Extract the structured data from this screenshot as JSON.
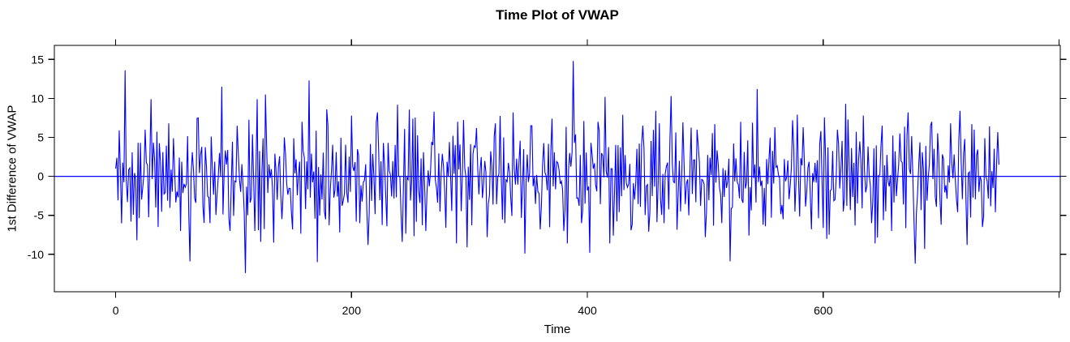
{
  "title": "Time Plot of VWAP",
  "axes": {
    "xlabel": "Time",
    "ylabel": "1st Difference of VWAP"
  },
  "colors": {
    "line": "#0000ff",
    "zero_line": "#0000ff",
    "axis": "#000000",
    "background": "#ffffff"
  },
  "chart_data": {
    "type": "line",
    "title": "Time Plot of VWAP",
    "xlabel": "Time",
    "ylabel": "1st Difference of VWAP",
    "grid": false,
    "legend": false,
    "xlim": [
      -52,
      801
    ],
    "ylim": [
      -14.8,
      16.8
    ],
    "x_ticks_labeled": [
      0,
      200,
      400,
      600
    ],
    "x_ticks_all": [
      0,
      200,
      400,
      600,
      800
    ],
    "y_ticks": [
      -10,
      -5,
      0,
      5,
      10,
      15
    ],
    "ticks_on_all_sides": true,
    "zero_line": {
      "y": 0,
      "color": "#0000ff"
    },
    "x_data_range": [
      0,
      749
    ],
    "series": [
      {
        "name": "1st difference of VWAP",
        "color": "#0000ff",
        "n": 750,
        "appearance": "high-frequency white-noise oscillation around 0, typical amplitude ±5 to ±8",
        "noise_sd": 3.3,
        "noise_clamp": 8.6,
        "ma_theta": 0.5,
        "seed": 11,
        "anchors": [
          [
            3,
            5.9
          ],
          [
            8,
            13.6
          ],
          [
            13,
            -5.8
          ],
          [
            18,
            -8.2
          ],
          [
            25,
            6.0
          ],
          [
            30,
            9.9
          ],
          [
            36,
            -6.5
          ],
          [
            45,
            6.8
          ],
          [
            55,
            -7.0
          ],
          [
            63,
            -10.9
          ],
          [
            70,
            7.5
          ],
          [
            80,
            -6.0
          ],
          [
            90,
            11.5
          ],
          [
            97,
            -7.0
          ],
          [
            103,
            6.5
          ],
          [
            110,
            -12.4
          ],
          [
            120,
            9.9
          ],
          [
            127,
            10.5
          ],
          [
            134,
            -8.5
          ],
          [
            143,
            5.0
          ],
          [
            150,
            -6.8
          ],
          [
            158,
            7.0
          ],
          [
            164,
            12.3
          ],
          [
            171,
            -11.0
          ],
          [
            180,
            6.5
          ],
          [
            190,
            -7.2
          ],
          [
            200,
            7.8
          ],
          [
            207,
            -6.0
          ],
          [
            214,
            -8.8
          ],
          [
            222,
            8.2
          ],
          [
            230,
            -6.4
          ],
          [
            239,
            9.2
          ],
          [
            243,
            -8.4
          ],
          [
            252,
            7.4
          ],
          [
            263,
            -7.0
          ],
          [
            270,
            8.3
          ],
          [
            280,
            -6.6
          ],
          [
            290,
            7.0
          ],
          [
            298,
            -9.1
          ],
          [
            306,
            6.2
          ],
          [
            315,
            -7.8
          ],
          [
            322,
            6.8
          ],
          [
            330,
            -6.0
          ],
          [
            337,
            8.2
          ],
          [
            347,
            -9.9
          ],
          [
            352,
            6.5
          ],
          [
            360,
            -6.8
          ],
          [
            370,
            7.4
          ],
          [
            380,
            -7.0
          ],
          [
            388,
            14.8
          ],
          [
            395,
            -6.0
          ],
          [
            402,
            -9.8
          ],
          [
            409,
            7.0
          ],
          [
            415,
            10.2
          ],
          [
            422,
            -7.6
          ],
          [
            430,
            7.9
          ],
          [
            438,
            -6.2
          ],
          [
            447,
            6.5
          ],
          [
            452,
            -7.1
          ],
          [
            458,
            8.4
          ],
          [
            465,
            -6.0
          ],
          [
            471,
            10.3
          ],
          [
            478,
            2.0
          ],
          [
            482,
            1.6
          ],
          [
            486,
            -5.0
          ],
          [
            493,
            6.0
          ],
          [
            500,
            -7.8
          ],
          [
            508,
            6.7
          ],
          [
            514,
            -6.0
          ],
          [
            521,
            -10.9
          ],
          [
            530,
            7.0
          ],
          [
            537,
            -7.6
          ],
          [
            544,
            11.2
          ],
          [
            551,
            -6.4
          ],
          [
            559,
            6.3
          ],
          [
            566,
            -5.5
          ],
          [
            574,
            7.2
          ],
          [
            583,
            6.3
          ],
          [
            590,
            -6.8
          ],
          [
            598,
            5.8
          ],
          [
            605,
            -7.5
          ],
          [
            612,
            6.0
          ],
          [
            619,
            9.3
          ],
          [
            627,
            -6.3
          ],
          [
            634,
            7.8
          ],
          [
            641,
            -6.0
          ],
          [
            650,
            6.5
          ],
          [
            658,
            -7.0
          ],
          [
            665,
            5.5
          ],
          [
            672,
            8.2
          ],
          [
            678,
            -11.2
          ],
          [
            686,
            -9.3
          ],
          [
            692,
            7.0
          ],
          [
            700,
            -6.2
          ],
          [
            708,
            6.8
          ],
          [
            716,
            8.4
          ],
          [
            722,
            -8.8
          ],
          [
            728,
            6.0
          ],
          [
            735,
            -6.5
          ],
          [
            741,
            6.4
          ],
          [
            746,
            -4.6
          ],
          [
            749,
            1.5
          ]
        ]
      }
    ]
  }
}
